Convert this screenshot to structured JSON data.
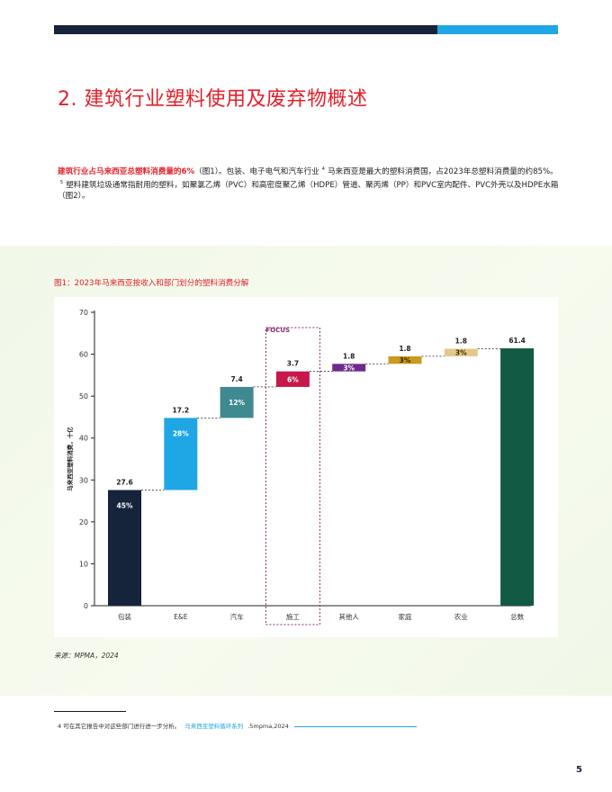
{
  "page": {
    "title": "2. 建筑行业塑料使用及废弃物概述",
    "intro_highlight": "建筑行业占马来西亚总塑料消费量的6%",
    "intro_text_1": "（图1）。包装、电子电气和汽车行业",
    "footnote_ref_4": "4",
    "intro_text_2": "马来西亚是最大的塑料消费国，占2023年总塑料消费量的约85%。",
    "footnote_ref_5": "5",
    "intro_text_3": "塑料建筑垃圾通常指耐用的塑料，如聚氯乙烯（PVC）和高密度聚乙烯（HDPE）管道、聚丙烯（PP）和PVC室内配件、PVC外壳以及HDPE水箱（图2）。",
    "figure_title": "图1：2023年马来西亚按收入和部门划分的塑料消费分解",
    "source": "来源：MPMA，2024",
    "footnote_text": "4 可在其它报告中对这些部门进行进一步分析。",
    "footnote_link": "马来西亚塑料循环系列",
    "footnote_suffix": ".5mpma,2024",
    "page_number": "5",
    "colors": {
      "accent_red": "#e3202a",
      "navy": "#15233b",
      "blue": "#1ea7e4"
    }
  },
  "chart_data": {
    "type": "bar",
    "subtype": "waterfall",
    "title": "",
    "xlabel": "",
    "ylabel": "马来西亚塑料消费，十亿",
    "ylim": [
      0,
      70
    ],
    "yticks": [
      0,
      10,
      20,
      30,
      40,
      50,
      60,
      70
    ],
    "grid": false,
    "focus_label": "FOCUS",
    "focus_category": "施工",
    "categories": [
      "包装",
      "E&E",
      "汽车",
      "施工",
      "其他人",
      "家庭",
      "农业",
      "总数"
    ],
    "values": [
      27.6,
      17.2,
      7.4,
      3.7,
      1.8,
      1.8,
      1.8,
      61.4
    ],
    "value_labels": [
      "27.6",
      "17.2",
      "7.4",
      "3.7",
      "1.8",
      "1.8",
      "1.8",
      "61.4"
    ],
    "percent_labels": [
      "45%",
      "28%",
      "12%",
      "6%",
      "3%",
      "3%",
      "3%",
      ""
    ],
    "is_total": [
      false,
      false,
      false,
      false,
      false,
      false,
      false,
      true
    ],
    "bar_colors": [
      "#15233b",
      "#1ea7e4",
      "#3f8a91",
      "#c8174a",
      "#6e2a8e",
      "#c99a1e",
      "#e2c98a",
      "#135a44"
    ]
  }
}
